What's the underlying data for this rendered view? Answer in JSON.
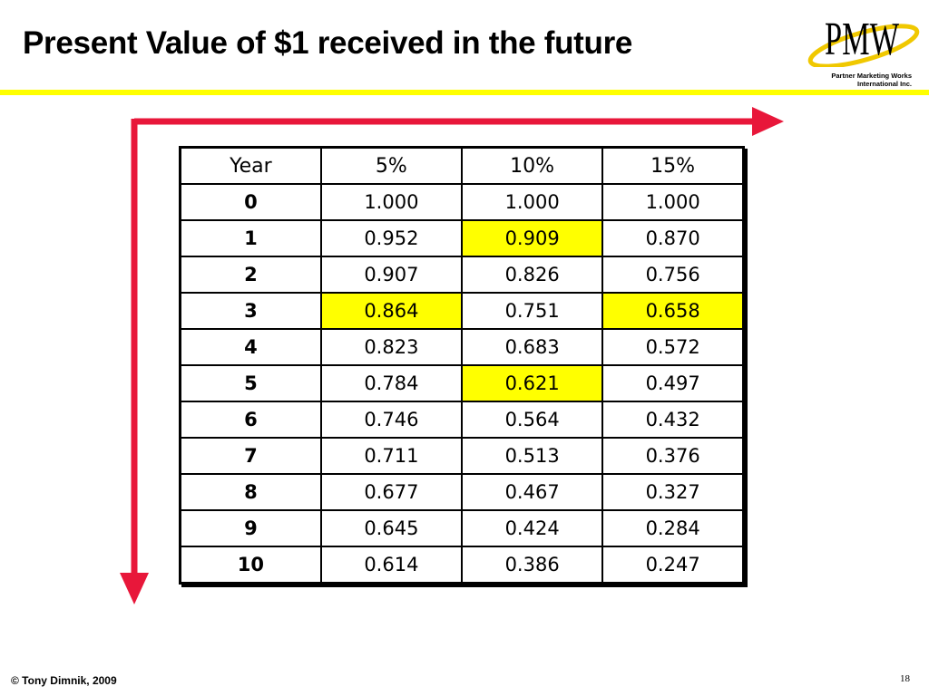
{
  "slide": {
    "title": "Present Value of $1 received in the future",
    "footer": "© Tony Dimnik, 2009",
    "page_number": "18"
  },
  "logo": {
    "mark": "PMW",
    "line1": "Partner Marketing Works",
    "line2": "International Inc."
  },
  "colors": {
    "highlight": "#ffff00",
    "arrow": "#e8173a",
    "rule": "#ffff00"
  },
  "table": {
    "headers": [
      "Year",
      "5%",
      "10%",
      "15%"
    ],
    "rows": [
      {
        "year": "0",
        "r5": "1.000",
        "r10": "1.000",
        "r15": "1.000"
      },
      {
        "year": "1",
        "r5": "0.952",
        "r10": "0.909",
        "r15": "0.870"
      },
      {
        "year": "2",
        "r5": "0.907",
        "r10": "0.826",
        "r15": "0.756"
      },
      {
        "year": "3",
        "r5": "0.864",
        "r10": "0.751",
        "r15": "0.658"
      },
      {
        "year": "4",
        "r5": "0.823",
        "r10": "0.683",
        "r15": "0.572"
      },
      {
        "year": "5",
        "r5": "0.784",
        "r10": "0.621",
        "r15": "0.497"
      },
      {
        "year": "6",
        "r5": "0.746",
        "r10": "0.564",
        "r15": "0.432"
      },
      {
        "year": "7",
        "r5": "0.711",
        "r10": "0.513",
        "r15": "0.376"
      },
      {
        "year": "8",
        "r5": "0.677",
        "r10": "0.467",
        "r15": "0.327"
      },
      {
        "year": "9",
        "r5": "0.645",
        "r10": "0.424",
        "r15": "0.284"
      },
      {
        "year": "10",
        "r5": "0.614",
        "r10": "0.386",
        "r15": "0.247"
      }
    ],
    "highlighted_cells": [
      {
        "year": "1",
        "rate": "10%"
      },
      {
        "year": "3",
        "rate": "5%"
      },
      {
        "year": "3",
        "rate": "15%"
      },
      {
        "year": "5",
        "rate": "10%"
      }
    ]
  }
}
